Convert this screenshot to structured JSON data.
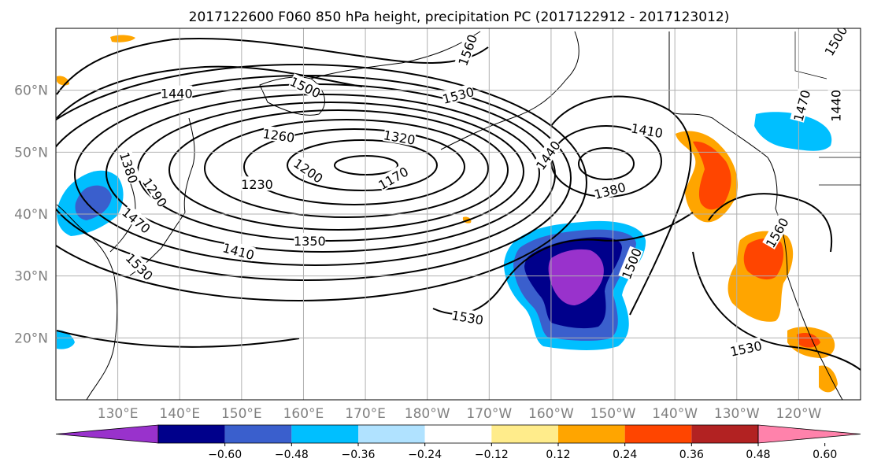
{
  "title": "2017122600 F060 850 hPa height, precipitation PC (2017122912 - 2017123012)",
  "latitudes": [
    {
      "label": "60°N",
      "value": 60
    },
    {
      "label": "50°N",
      "value": 50
    },
    {
      "label": "40°N",
      "value": 40
    },
    {
      "label": "30°N",
      "value": 30
    },
    {
      "label": "20°N",
      "value": 20
    }
  ],
  "longitudes": [
    {
      "label": "130°E",
      "value": 130
    },
    {
      "label": "140°E",
      "value": 140
    },
    {
      "label": "150°E",
      "value": 150
    },
    {
      "label": "160°E",
      "value": 160
    },
    {
      "label": "170°E",
      "value": 170
    },
    {
      "label": "180°W",
      "value": 180
    },
    {
      "label": "170°W",
      "value": 190
    },
    {
      "label": "160°W",
      "value": 200
    },
    {
      "label": "150°W",
      "value": 210
    },
    {
      "label": "140°W",
      "value": 220
    },
    {
      "label": "130°W",
      "value": 230
    },
    {
      "label": "120°W",
      "value": 240
    }
  ],
  "map_extent": {
    "lon_min": 120,
    "lon_max": 250,
    "lat_min": 10,
    "lat_max": 70
  },
  "colorbar": {
    "colors": [
      "#9932cc",
      "#00008b",
      "#3a5fcd",
      "#00bfff",
      "#b0e2ff",
      "#ffffff",
      "#ffec8b",
      "#ffa500",
      "#ff4500",
      "#b22222",
      "#ff82ab"
    ],
    "tick_labels": [
      "−0.60",
      "−0.48",
      "−0.36",
      "−0.24",
      "−0.12",
      "0.12",
      "0.24",
      "0.36",
      "0.48",
      "0.60"
    ]
  },
  "contour_labels": [
    {
      "text": "1440",
      "lon": 139.5,
      "lat": 59.5,
      "angle": 0
    },
    {
      "text": "1500",
      "lon": 160.3,
      "lat": 60.5,
      "angle": 25
    },
    {
      "text": "1560",
      "lon": 186.5,
      "lat": 66.5,
      "angle": -70
    },
    {
      "text": "1530",
      "lon": 185,
      "lat": 59.2,
      "angle": -15
    },
    {
      "text": "1260",
      "lon": 156,
      "lat": 52.7,
      "angle": 8
    },
    {
      "text": "1320",
      "lon": 175.5,
      "lat": 52.4,
      "angle": 10
    },
    {
      "text": "1380",
      "lon": 131.8,
      "lat": 47.5,
      "angle": 72
    },
    {
      "text": "1200",
      "lon": 160.8,
      "lat": 47,
      "angle": 35
    },
    {
      "text": "1170",
      "lon": 174.5,
      "lat": 45.8,
      "angle": -30
    },
    {
      "text": "1290",
      "lon": 136,
      "lat": 43.5,
      "angle": 55
    },
    {
      "text": "1230",
      "lon": 152.5,
      "lat": 44.8,
      "angle": 0
    },
    {
      "text": "1470",
      "lon": 133,
      "lat": 39,
      "angle": 40
    },
    {
      "text": "1350",
      "lon": 161,
      "lat": 35.7,
      "angle": 0
    },
    {
      "text": "1410",
      "lon": 149.5,
      "lat": 34,
      "angle": 15
    },
    {
      "text": "1530",
      "lon": 133.5,
      "lat": 31.5,
      "angle": 45
    },
    {
      "text": "1440",
      "lon": 199.5,
      "lat": 49.5,
      "angle": -55
    },
    {
      "text": "1410",
      "lon": 215.5,
      "lat": 53.5,
      "angle": 10
    },
    {
      "text": "1380",
      "lon": 209.5,
      "lat": 43.8,
      "angle": -15
    },
    {
      "text": "1500",
      "lon": 213,
      "lat": 32,
      "angle": -68
    },
    {
      "text": "1530",
      "lon": 186.5,
      "lat": 23.3,
      "angle": 10
    },
    {
      "text": "1530",
      "lon": 231.5,
      "lat": 18.3,
      "angle": -12
    },
    {
      "text": "1560",
      "lon": 236.5,
      "lat": 37,
      "angle": -60
    },
    {
      "text": "1470",
      "lon": 240.5,
      "lat": 57.5,
      "angle": -75
    },
    {
      "text": "1440",
      "lon": 246,
      "lat": 57.5,
      "angle": -90
    },
    {
      "text": "1500",
      "lon": 246,
      "lat": 68,
      "angle": -60
    }
  ]
}
